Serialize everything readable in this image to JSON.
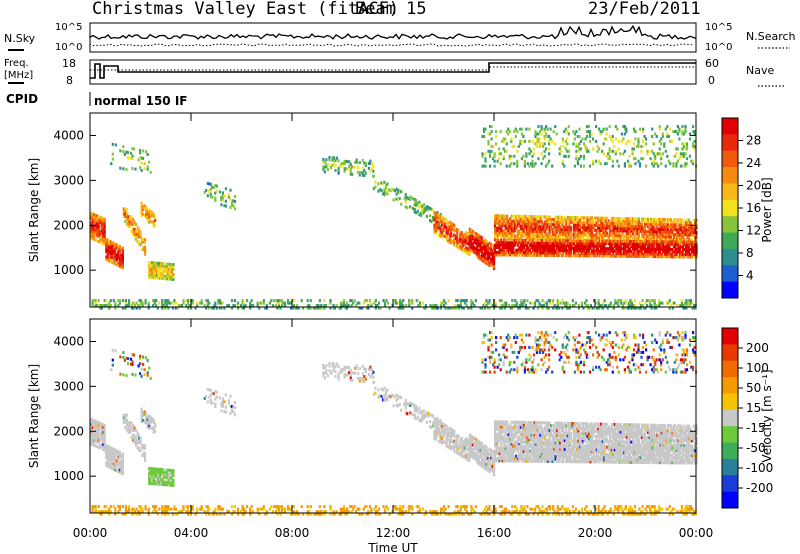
{
  "header": {
    "station": "Christmas Valley East (fitACF)",
    "beam": "Beam 15",
    "date": "23/Feb/2011"
  },
  "panels": {
    "nsky_label": "N.Sky",
    "nsky_ticks": [
      "10^5",
      "10^0"
    ],
    "nsearch_label": "N.Search",
    "nsearch_ticks": [
      "10^5",
      "10^0"
    ],
    "freq_label": "Freq.",
    "freq_unit": "[MHz]",
    "freq_ticks": [
      "18",
      "8"
    ],
    "nave_label": "Nave",
    "nave_ticks": [
      "60",
      "0"
    ],
    "cpid_label": "CPID",
    "cpid_text": "normal 150 IF"
  },
  "chart_data": [
    {
      "type": "heatmap",
      "title": "",
      "ylabel": "Slant Range [km]",
      "xlabel": "",
      "ylim": [
        180,
        4500
      ],
      "yticks": [
        "4000",
        "3000",
        "2000",
        "1000"
      ],
      "xlim_hours": [
        0,
        24
      ],
      "colorbar": {
        "label": "Power [dB]",
        "ticks": [
          "28",
          "24",
          "20",
          "16",
          "12",
          "8",
          "4"
        ],
        "colors": [
          "#0000ff",
          "#1e5fd0",
          "#2f8f8f",
          "#3fa85a",
          "#88c43a",
          "#f2e21b",
          "#f7b818",
          "#f58a10",
          "#f05a0d",
          "#e82a0c",
          "#e00000"
        ]
      }
    },
    {
      "type": "heatmap",
      "title": "",
      "ylabel": "Slant Range [km]",
      "xlabel": "Time UT",
      "ylim": [
        180,
        4500
      ],
      "yticks": [
        "4000",
        "3000",
        "2000",
        "1000"
      ],
      "xticks": [
        "00:00",
        "04:00",
        "08:00",
        "12:00",
        "16:00",
        "20:00",
        "00:00"
      ],
      "colorbar": {
        "label": "Velocity [m s⁻¹]",
        "ticks": [
          "200",
          "100",
          "50",
          "15",
          "-15",
          "-50",
          "-100",
          "-200"
        ],
        "colors": [
          "#0000ff",
          "#1a3cd8",
          "#2a7f9a",
          "#3fae5a",
          "#6ccb3a",
          "#c8c8c8",
          "#f5c400",
          "#f59a00",
          "#f06a00",
          "#e83a00",
          "#e00000"
        ]
      }
    }
  ]
}
